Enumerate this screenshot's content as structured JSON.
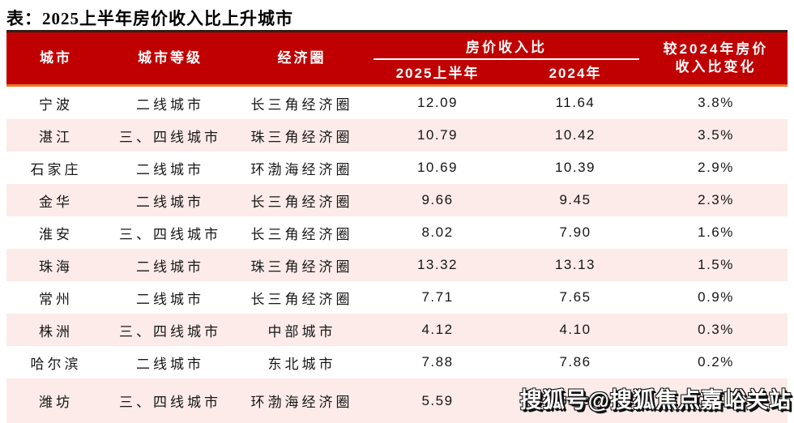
{
  "page": {
    "title": "表：2025上半年房价收入比上升城市"
  },
  "table": {
    "headers": {
      "city": "城市",
      "tier": "城市等级",
      "circle": "经济圈",
      "ratio_group": "房价收入比",
      "h1_2025": "2025上半年",
      "y2024": "2024年",
      "change": "较2024年房价收入比变化"
    },
    "rows": [
      {
        "city": "宁波",
        "tier": "二线城市",
        "circle": "长三角经济圈",
        "ratio_2025h1": "12.09",
        "ratio_2024": "11.64",
        "change": "3.8%"
      },
      {
        "city": "湛江",
        "tier": "三、四线城市",
        "circle": "珠三角经济圈",
        "ratio_2025h1": "10.79",
        "ratio_2024": "10.42",
        "change": "3.5%"
      },
      {
        "city": "石家庄",
        "tier": "二线城市",
        "circle": "环渤海经济圈",
        "ratio_2025h1": "10.69",
        "ratio_2024": "10.39",
        "change": "2.9%"
      },
      {
        "city": "金华",
        "tier": "二线城市",
        "circle": "长三角经济圈",
        "ratio_2025h1": "9.66",
        "ratio_2024": "9.45",
        "change": "2.3%"
      },
      {
        "city": "淮安",
        "tier": "三、四线城市",
        "circle": "长三角经济圈",
        "ratio_2025h1": "8.02",
        "ratio_2024": "7.90",
        "change": "1.6%"
      },
      {
        "city": "珠海",
        "tier": "二线城市",
        "circle": "珠三角经济圈",
        "ratio_2025h1": "13.32",
        "ratio_2024": "13.13",
        "change": "1.5%"
      },
      {
        "city": "常州",
        "tier": "二线城市",
        "circle": "长三角经济圈",
        "ratio_2025h1": "7.71",
        "ratio_2024": "7.65",
        "change": "0.9%"
      },
      {
        "city": "株洲",
        "tier": "三、四线城市",
        "circle": "中部城市",
        "ratio_2025h1": "4.12",
        "ratio_2024": "4.10",
        "change": "0.3%"
      },
      {
        "city": "哈尔滨",
        "tier": "二线城市",
        "circle": "东北城市",
        "ratio_2025h1": "7.88",
        "ratio_2024": "7.86",
        "change": "0.2%"
      },
      {
        "city": "潍坊",
        "tier": "三、四线城市",
        "circle": "环渤海经济圈",
        "ratio_2025h1": "5.59",
        "ratio_2024": "5.58",
        "change": "0.2%"
      }
    ]
  },
  "watermark": {
    "text": "搜狐号@搜狐焦点嘉峪关站"
  },
  "colors": {
    "header_bg": "#C00000",
    "header_text": "#ffffff",
    "header_top_line": "#2a211a",
    "accent_orange_line": "#E8792E",
    "row_stripe_pink": "#fcebe8",
    "body_text": "#161616"
  },
  "chart_data": {
    "type": "table",
    "title": "表：2025上半年房价收入比上升城市",
    "columns": [
      "城市",
      "城市等级",
      "经济圈",
      "房价收入比 2025上半年",
      "房价收入比 2024年",
      "较2024年房价收入比变化"
    ],
    "rows": [
      [
        "宁波",
        "二线城市",
        "长三角经济圈",
        12.09,
        11.64,
        "3.8%"
      ],
      [
        "湛江",
        "三、四线城市",
        "珠三角经济圈",
        10.79,
        10.42,
        "3.5%"
      ],
      [
        "石家庄",
        "二线城市",
        "环渤海经济圈",
        10.69,
        10.39,
        "2.9%"
      ],
      [
        "金华",
        "二线城市",
        "长三角经济圈",
        9.66,
        9.45,
        "2.3%"
      ],
      [
        "淮安",
        "三、四线城市",
        "长三角经济圈",
        8.02,
        7.9,
        "1.6%"
      ],
      [
        "珠海",
        "二线城市",
        "珠三角经济圈",
        13.32,
        13.13,
        "1.5%"
      ],
      [
        "常州",
        "二线城市",
        "长三角经济圈",
        7.71,
        7.65,
        "0.9%"
      ],
      [
        "株洲",
        "三、四线城市",
        "中部城市",
        4.12,
        4.1,
        "0.3%"
      ],
      [
        "哈尔滨",
        "二线城市",
        "东北城市",
        7.88,
        7.86,
        "0.2%"
      ],
      [
        "潍坊",
        "三、四线城市",
        "环渤海经济圈",
        5.59,
        5.58,
        "0.2%"
      ]
    ]
  }
}
